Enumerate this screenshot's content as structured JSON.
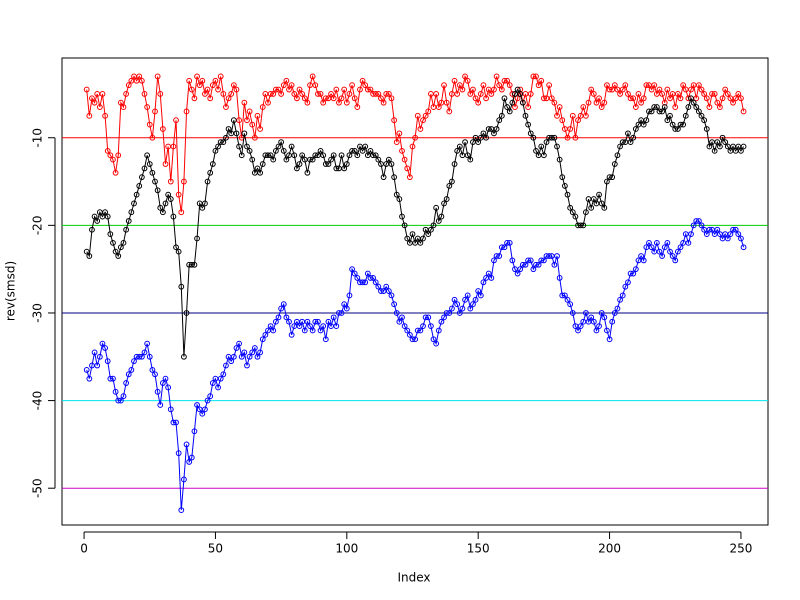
{
  "chart_data": {
    "type": "line",
    "xlabel": "Index",
    "ylabel": "rev(smsd)",
    "xlim": [
      -8.4,
      260.3
    ],
    "ylim": [
      -54.2,
      -0.9
    ],
    "xticks": [
      0,
      50,
      100,
      150,
      200,
      250
    ],
    "yticks": [
      -50,
      -40,
      -30,
      -20,
      -10
    ],
    "hlines": [
      {
        "value": -10,
        "color": "#ff0000"
      },
      {
        "value": -20,
        "color": "#00cd00"
      },
      {
        "value": -30,
        "color": "#000080"
      },
      {
        "value": -40,
        "color": "#00e5ee"
      },
      {
        "value": -50,
        "color": "#cd00cd"
      }
    ],
    "x": [
      1,
      2,
      3,
      4,
      5,
      6,
      7,
      8,
      9,
      10,
      11,
      12,
      13,
      14,
      15,
      16,
      17,
      18,
      19,
      20,
      21,
      22,
      23,
      24,
      25,
      26,
      27,
      28,
      29,
      30,
      31,
      32,
      33,
      34,
      35,
      36,
      37,
      38,
      39,
      40,
      41,
      42,
      43,
      44,
      45,
      46,
      47,
      48,
      49,
      50,
      51,
      52,
      53,
      54,
      55,
      56,
      57,
      58,
      59,
      60,
      61,
      62,
      63,
      64,
      65,
      66,
      67,
      68,
      69,
      70,
      71,
      72,
      73,
      74,
      75,
      76,
      77,
      78,
      79,
      80,
      81,
      82,
      83,
      84,
      85,
      86,
      87,
      88,
      89,
      90,
      91,
      92,
      93,
      94,
      95,
      96,
      97,
      98,
      99,
      100,
      101,
      102,
      103,
      104,
      105,
      106,
      107,
      108,
      109,
      110,
      111,
      112,
      113,
      114,
      115,
      116,
      117,
      118,
      119,
      120,
      121,
      122,
      123,
      124,
      125,
      126,
      127,
      128,
      129,
      130,
      131,
      132,
      133,
      134,
      135,
      136,
      137,
      138,
      139,
      140,
      141,
      142,
      143,
      144,
      145,
      146,
      147,
      148,
      149,
      150,
      151,
      152,
      153,
      154,
      155,
      156,
      157,
      158,
      159,
      160,
      161,
      162,
      163,
      164,
      165,
      166,
      167,
      168,
      169,
      170,
      171,
      172,
      173,
      174,
      175,
      176,
      177,
      178,
      179,
      180,
      181,
      182,
      183,
      184,
      185,
      186,
      187,
      188,
      189,
      190,
      191,
      192,
      193,
      194,
      195,
      196,
      197,
      198,
      199,
      200,
      201,
      202,
      203,
      204,
      205,
      206,
      207,
      208,
      209,
      210,
      211,
      212,
      213,
      214,
      215,
      216,
      217,
      218,
      219,
      220,
      221,
      222,
      223,
      224,
      225,
      226,
      227,
      228,
      229,
      230,
      231,
      232,
      233,
      234,
      235,
      236,
      237,
      238,
      239,
      240,
      241,
      242,
      243,
      244,
      245,
      246,
      247,
      248,
      249,
      250,
      251
    ],
    "series": [
      {
        "color": "#ff0000",
        "values": [
          -4.5,
          -7.5,
          -5.5,
          -6,
          -5,
          -6.5,
          -5,
          -7.5,
          -11.5,
          -12,
          -12.5,
          -14,
          -12,
          -6,
          -6.5,
          -5,
          -4,
          -3.5,
          -3,
          -3.5,
          -3,
          -3.5,
          -5,
          -6.5,
          -8.5,
          -10,
          -7,
          -3,
          -5,
          -9,
          -13,
          -11,
          -15,
          -11,
          -8,
          -16.5,
          -18.5,
          -15,
          -7,
          -3.5,
          -4.5,
          -5.5,
          -3,
          -4,
          -3.5,
          -5,
          -4.5,
          -5.5,
          -4,
          -3.5,
          -4.5,
          -3,
          -5,
          -6.5,
          -5.5,
          -5,
          -4,
          -4.5,
          -8,
          -10,
          -6,
          -8,
          -7,
          -8.5,
          -10,
          -7.5,
          -9,
          -6.5,
          -5,
          -6,
          -5,
          -5,
          -4.5,
          -4.5,
          -5,
          -4,
          -3.5,
          -4.5,
          -4,
          -5,
          -5.5,
          -4.5,
          -5,
          -5.5,
          -6,
          -4,
          -3,
          -4,
          -5,
          -5,
          -6,
          -5.5,
          -5.5,
          -5,
          -5.5,
          -4.5,
          -6,
          -5.5,
          -4.5,
          -6,
          -5,
          -4,
          -5.5,
          -6.5,
          -4.5,
          -3.5,
          -4,
          -4.5,
          -4.5,
          -5,
          -5,
          -5,
          -5.5,
          -6,
          -5,
          -5,
          -5.5,
          -8,
          -10.5,
          -9.5,
          -11.5,
          -12.5,
          -13.5,
          -14.5,
          -11,
          -10,
          -7.5,
          -9,
          -8,
          -7.5,
          -7,
          -5,
          -6.5,
          -5,
          -6.5,
          -6,
          -4,
          -6,
          -7,
          -5,
          -3.5,
          -5,
          -4,
          -4.5,
          -3,
          -3.5,
          -5,
          -4.5,
          -5.5,
          -6,
          -5,
          -4,
          -5.5,
          -4.5,
          -5,
          -4.5,
          -3,
          -4,
          -4.5,
          -3.5,
          -3.5,
          -4,
          -5,
          -6.5,
          -5.5,
          -4.5,
          -6,
          -5,
          -6.5,
          -5,
          -3,
          -3,
          -4,
          -3.5,
          -5.5,
          -5.5,
          -4,
          -5.5,
          -6,
          -7.5,
          -6.5,
          -8,
          -9,
          -10,
          -9,
          -7.5,
          -10,
          -8,
          -7.5,
          -6.5,
          -7.5,
          -6,
          -4.5,
          -5,
          -6,
          -5.5,
          -6.5,
          -6,
          -4,
          -4.5,
          -4.5,
          -4,
          -4.5,
          -5,
          -4.5,
          -4,
          -5,
          -5.5,
          -5.5,
          -6.5,
          -5,
          -6,
          -5.5,
          -4,
          -4,
          -4.5,
          -4,
          -5,
          -4.5,
          -5,
          -6,
          -4.5,
          -5.5,
          -5,
          -6.5,
          -5,
          -5.5,
          -4,
          -4.5,
          -5.5,
          -4.5,
          -4,
          -5.5,
          -4,
          -4.5,
          -5,
          -5.5,
          -6.5,
          -5,
          -5,
          -6,
          -6.5,
          -5.5,
          -4.5,
          -5,
          -5.5,
          -6,
          -5.5,
          -5,
          -5.5,
          -7
        ]
      },
      {
        "color": "#000000",
        "values": [
          -23,
          -23.5,
          -20.5,
          -19,
          -19.5,
          -18.5,
          -19,
          -18.5,
          -19,
          -21,
          -22,
          -23,
          -23.5,
          -22.5,
          -22,
          -20.5,
          -19.5,
          -18.5,
          -17.5,
          -16.5,
          -15.5,
          -14.5,
          -13.5,
          -12,
          -13,
          -14,
          -15,
          -16,
          -18,
          -18.5,
          -17.5,
          -16.5,
          -17,
          -19,
          -22.5,
          -23,
          -27,
          -35,
          -30,
          -24.5,
          -24.5,
          -24.5,
          -21.5,
          -17.5,
          -18,
          -17.5,
          -15,
          -14,
          -13,
          -11.5,
          -11,
          -10.5,
          -10.5,
          -10,
          -9,
          -9.5,
          -8,
          -9.5,
          -11,
          -12,
          -9.5,
          -11,
          -11.5,
          -12.5,
          -14,
          -13.5,
          -14,
          -13,
          -12,
          -12,
          -12,
          -12.5,
          -11.5,
          -11,
          -10.5,
          -11.5,
          -12.5,
          -12,
          -11,
          -12,
          -13.5,
          -13,
          -12,
          -12.5,
          -14,
          -12.5,
          -12.5,
          -12,
          -12,
          -11.5,
          -12,
          -13,
          -13,
          -12.5,
          -12,
          -13.5,
          -13.5,
          -12,
          -13.5,
          -13,
          -12,
          -11.5,
          -11.5,
          -12,
          -11,
          -11.5,
          -11,
          -12,
          -11.5,
          -12,
          -12,
          -12.5,
          -13,
          -14.5,
          -13,
          -12.5,
          -13,
          -14.5,
          -16.5,
          -17,
          -19,
          -20,
          -21.5,
          -22,
          -21,
          -22,
          -21.5,
          -22,
          -21.5,
          -20.5,
          -21,
          -20.5,
          -20,
          -18,
          -19.5,
          -19,
          -17.5,
          -17,
          -15.5,
          -15,
          -13,
          -11.5,
          -11,
          -12,
          -10.5,
          -12,
          -12.5,
          -10.5,
          -10,
          -10.5,
          -10,
          -9.5,
          -10,
          -9,
          -9,
          -9.5,
          -9,
          -8,
          -7.5,
          -5.5,
          -6.5,
          -7,
          -6,
          -5,
          -4.5,
          -5,
          -6,
          -7.5,
          -8.5,
          -9.5,
          -10,
          -11.5,
          -12,
          -11,
          -12,
          -10.5,
          -10,
          -10,
          -10,
          -11,
          -12.5,
          -14.5,
          -15.5,
          -16.5,
          -18,
          -18.5,
          -19,
          -20,
          -20,
          -20,
          -18.5,
          -17,
          -18,
          -17,
          -17.5,
          -16.5,
          -17.5,
          -18,
          -15,
          -14.5,
          -14.5,
          -13,
          -12,
          -11,
          -10.5,
          -10.5,
          -9.5,
          -10.5,
          -10,
          -9,
          -8.5,
          -8,
          -8.5,
          -8,
          -7,
          -7,
          -6.5,
          -6.5,
          -7,
          -7,
          -6.5,
          -8,
          -7.5,
          -8.5,
          -9,
          -9,
          -8.5,
          -8.5,
          -7.5,
          -6.5,
          -5.5,
          -6,
          -6.5,
          -7,
          -7.5,
          -8,
          -9,
          -11,
          -10.5,
          -11.5,
          -10.5,
          -11,
          -10,
          -10.5,
          -11,
          -11.5,
          -11,
          -11.5,
          -11,
          -11.5,
          -11
        ]
      },
      {
        "color": "#0000ff",
        "values": [
          -36.5,
          -37.5,
          -36,
          -34.5,
          -36,
          -35,
          -33.5,
          -34,
          -35.5,
          -37.5,
          -37.5,
          -39,
          -40,
          -40,
          -39.5,
          -38,
          -37,
          -36.5,
          -35.5,
          -35,
          -35,
          -35,
          -34.5,
          -33.5,
          -35,
          -36.5,
          -37,
          -39,
          -40.5,
          -38,
          -37.5,
          -38.5,
          -41,
          -42.5,
          -42.5,
          -46,
          -52.5,
          -49,
          -45,
          -47,
          -46.5,
          -43.5,
          -40.5,
          -41,
          -41.5,
          -41,
          -40,
          -39.5,
          -38,
          -37.5,
          -38.5,
          -37.5,
          -37,
          -36,
          -35,
          -35.5,
          -35,
          -34,
          -33.5,
          -35,
          -34.5,
          -36,
          -35,
          -34.5,
          -34,
          -35,
          -34.5,
          -33,
          -32.5,
          -32,
          -31.5,
          -32,
          -31,
          -30.5,
          -29.5,
          -29,
          -30.5,
          -31,
          -32.5,
          -31.5,
          -31,
          -31.5,
          -31,
          -32,
          -31,
          -31.5,
          -32,
          -31,
          -31,
          -32,
          -31.5,
          -33,
          -31,
          -31.5,
          -30.5,
          -31.5,
          -30,
          -30,
          -29,
          -29.5,
          -28,
          -25,
          -25.5,
          -26,
          -26.5,
          -26.5,
          -26.5,
          -25.5,
          -26,
          -26,
          -26.5,
          -27,
          -27.5,
          -27.5,
          -27,
          -27.5,
          -28,
          -29,
          -30,
          -31,
          -30.5,
          -31.5,
          -32,
          -32.5,
          -33,
          -33,
          -32,
          -32,
          -31.5,
          -30.5,
          -30.5,
          -31.5,
          -33,
          -33.5,
          -32,
          -31,
          -30.5,
          -30,
          -30,
          -29.5,
          -28.5,
          -29,
          -30,
          -29.5,
          -28.5,
          -28,
          -29.5,
          -29,
          -28.5,
          -27.5,
          -28,
          -26.5,
          -26,
          -25.5,
          -26,
          -24,
          -23.5,
          -23.5,
          -22.5,
          -22.5,
          -22,
          -22,
          -24,
          -25,
          -25.5,
          -25,
          -24.5,
          -24.5,
          -24,
          -24,
          -25,
          -24.5,
          -24.5,
          -24,
          -24,
          -23.5,
          -23.5,
          -23.5,
          -24.5,
          -23.5,
          -26,
          -28,
          -28,
          -28.5,
          -29,
          -30,
          -31.5,
          -32,
          -31.5,
          -31,
          -30,
          -31,
          -30.5,
          -31,
          -32,
          -31.5,
          -30,
          -30.5,
          -32,
          -33,
          -31,
          -30,
          -29.5,
          -28.5,
          -28,
          -27,
          -26.5,
          -25.5,
          -25.5,
          -25,
          -24,
          -23.5,
          -24,
          -22.5,
          -22,
          -22.5,
          -23,
          -22,
          -23,
          -23.5,
          -22.5,
          -22,
          -23,
          -23.5,
          -24,
          -23,
          -22.5,
          -22,
          -21,
          -22,
          -21,
          -20,
          -19.5,
          -19.5,
          -20,
          -20.5,
          -21,
          -20.5,
          -20.5,
          -21,
          -20.5,
          -21,
          -21.5,
          -21,
          -21.5,
          -21,
          -20.5,
          -20.5,
          -21,
          -21.5,
          -22.5
        ]
      }
    ]
  }
}
